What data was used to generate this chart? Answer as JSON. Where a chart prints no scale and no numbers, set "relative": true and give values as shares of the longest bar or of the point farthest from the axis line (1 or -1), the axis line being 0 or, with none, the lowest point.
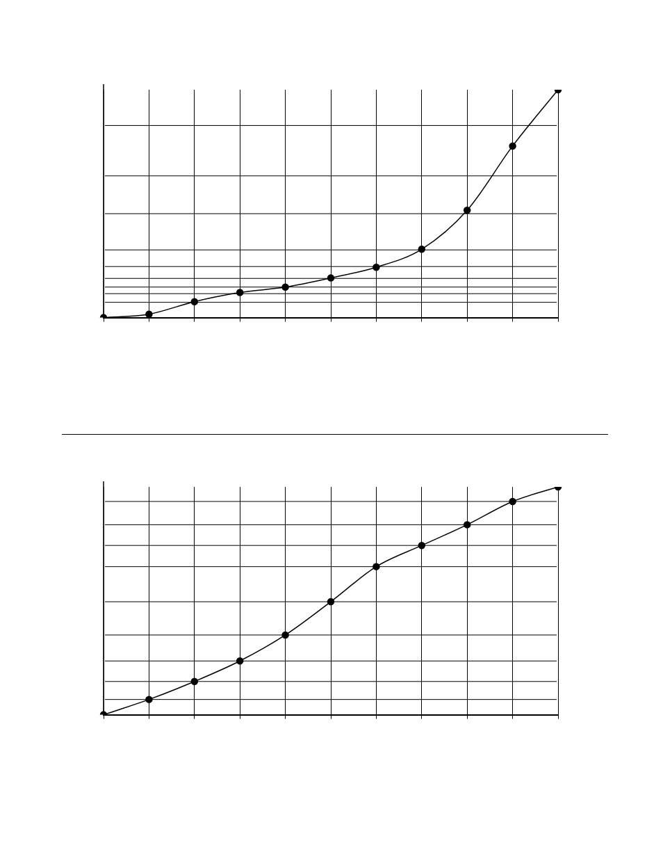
{
  "chart_data": [
    {
      "type": "line",
      "relative": true,
      "categories": [
        null,
        null,
        null,
        null,
        null,
        null,
        null,
        null,
        null,
        null,
        null
      ],
      "marker": "circle",
      "grid": "x",
      "series": [
        {
          "color": "#000000",
          "values": [
            0,
            0.015,
            0.07,
            0.11,
            0.134,
            0.174,
            0.221,
            0.3,
            0.471,
            0.753,
            1
          ]
        }
      ],
      "ref_lines": [
        {
          "axis": "y",
          "value": 0.843
        },
        {
          "axis": "y",
          "value": 0.622
        },
        {
          "axis": "y",
          "value": 0.456
        },
        {
          "axis": "y",
          "value": 0.297
        },
        {
          "axis": "y",
          "value": 0.224
        },
        {
          "axis": "y",
          "value": 0.172
        },
        {
          "axis": "y",
          "value": 0.134
        },
        {
          "axis": "y",
          "value": 0.105
        },
        {
          "axis": "y",
          "value": 0.067
        }
      ]
    },
    {
      "type": "line",
      "relative": true,
      "categories": [
        null,
        null,
        null,
        null,
        null,
        null,
        null,
        null,
        null,
        null,
        null
      ],
      "marker": "circle",
      "grid": "x",
      "series": [
        {
          "color": "#000000",
          "values": [
            0,
            0.067,
            0.146,
            0.236,
            0.35,
            0.496,
            0.65,
            0.743,
            0.834,
            0.936,
            1
          ]
        }
      ],
      "ref_lines": [
        {
          "axis": "y",
          "value": 0.936
        },
        {
          "axis": "y",
          "value": 0.834
        },
        {
          "axis": "y",
          "value": 0.743
        },
        {
          "axis": "y",
          "value": 0.65
        },
        {
          "axis": "y",
          "value": 0.496
        },
        {
          "axis": "y",
          "value": 0.35
        },
        {
          "axis": "y",
          "value": 0.236
        },
        {
          "axis": "y",
          "value": 0.146
        },
        {
          "axis": "y",
          "value": 0.067
        }
      ]
    }
  ]
}
